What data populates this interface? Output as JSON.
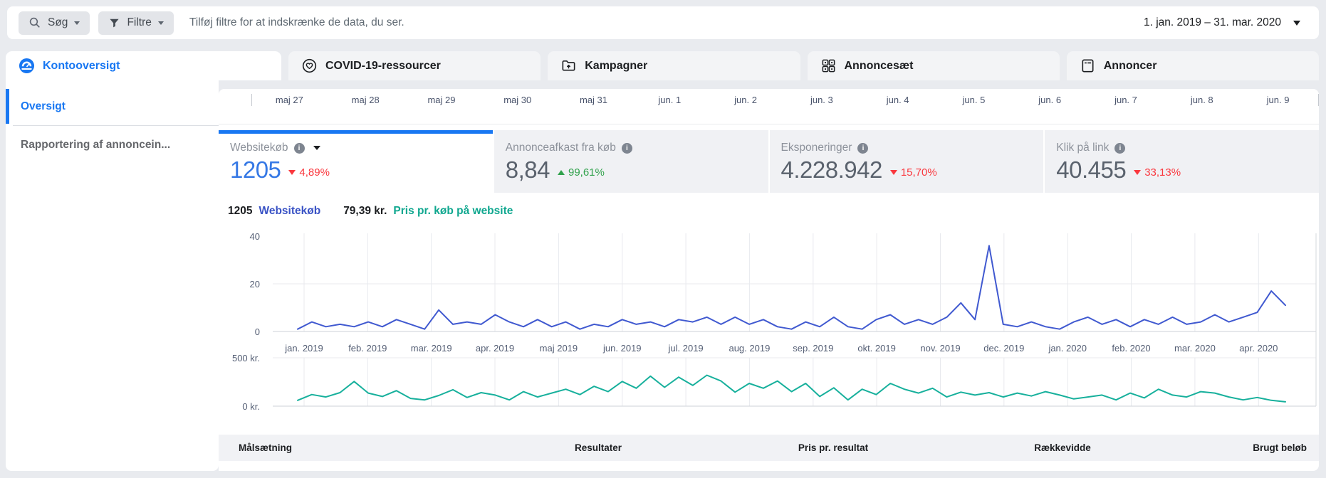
{
  "topbar": {
    "search_label": "Søg",
    "filter_label": "Filtre",
    "hint": "Tilføj filtre for at indskrænke de data, du ser.",
    "date_range": "1. jan. 2019 – 31. mar. 2020"
  },
  "tabs": [
    {
      "label": "Kontooversigt",
      "icon": "gauge-icon",
      "active": true
    },
    {
      "label": "COVID-19-ressourcer",
      "icon": "heart-circle-icon",
      "active": false
    },
    {
      "label": "Kampagner",
      "icon": "folder-arrow-icon",
      "active": false
    },
    {
      "label": "Annoncesæt",
      "icon": "grid-icon",
      "active": false
    },
    {
      "label": "Annoncer",
      "icon": "document-icon",
      "active": false
    }
  ],
  "sidebar": {
    "items": [
      {
        "label": "Oversigt",
        "active": true
      },
      {
        "label": "Rapportering af annoncein...",
        "active": false
      }
    ]
  },
  "timeline": {
    "dates": [
      "maj 27",
      "maj 28",
      "maj 29",
      "maj 30",
      "maj 31",
      "jun. 1",
      "jun. 2",
      "jun. 3",
      "jun. 4",
      "jun. 5",
      "jun. 6",
      "jun. 7",
      "jun. 8",
      "jun. 9"
    ]
  },
  "metrics": [
    {
      "label": "Websitekøb",
      "value": "1205",
      "delta": "4,89%",
      "direction": "down",
      "selected": true,
      "has_dropdown": true
    },
    {
      "label": "Annonceafkast fra køb",
      "value": "8,84",
      "delta": "99,61%",
      "direction": "up",
      "selected": false,
      "has_dropdown": false
    },
    {
      "label": "Eksponeringer",
      "value": "4.228.942",
      "delta": "15,70%",
      "direction": "down",
      "selected": false,
      "has_dropdown": false
    },
    {
      "label": "Klik på link",
      "value": "40.455",
      "delta": "33,13%",
      "direction": "down",
      "selected": false,
      "has_dropdown": false
    }
  ],
  "legend": {
    "purchases_value": "1205",
    "purchases_label": "Websitekøb",
    "cost_value": "79,39 kr.",
    "cost_label": "Pris pr. køb på website"
  },
  "chart_data": {
    "type": "line",
    "x_labels": [
      "jan. 2019",
      "feb. 2019",
      "mar. 2019",
      "apr. 2019",
      "maj 2019",
      "jun. 2019",
      "jul. 2019",
      "aug. 2019",
      "sep. 2019",
      "okt. 2019",
      "nov. 2019",
      "dec. 2019",
      "jan. 2020",
      "feb. 2020",
      "mar. 2020",
      "apr. 2020"
    ],
    "grid": true,
    "legend_position": "top",
    "top": {
      "name": "Websitekøb",
      "color": "#4059d0",
      "ylim": [
        0,
        40
      ],
      "yticks": [
        "40",
        "20",
        "0"
      ],
      "values": [
        1,
        4,
        2,
        3,
        2,
        4,
        2,
        5,
        3,
        1,
        9,
        3,
        4,
        3,
        7,
        4,
        2,
        5,
        2,
        4,
        1,
        3,
        2,
        5,
        3,
        4,
        2,
        5,
        4,
        6,
        3,
        6,
        3,
        5,
        2,
        1,
        4,
        2,
        6,
        2,
        1,
        5,
        7,
        3,
        5,
        3,
        6,
        12,
        5,
        36,
        3,
        2,
        4,
        2,
        1,
        4,
        6,
        3,
        5,
        2,
        5,
        3,
        6,
        3,
        4,
        7,
        4,
        6,
        8,
        17,
        11
      ]
    },
    "bottom": {
      "name": "Pris pr. køb på website",
      "color": "#17b09c",
      "ylim": [
        0,
        500
      ],
      "yticks": [
        "500 kr.",
        "0 kr."
      ],
      "values": [
        60,
        120,
        95,
        140,
        255,
        135,
        100,
        160,
        80,
        65,
        110,
        170,
        90,
        140,
        115,
        65,
        150,
        95,
        135,
        175,
        120,
        205,
        150,
        255,
        185,
        310,
        195,
        300,
        215,
        320,
        260,
        145,
        235,
        185,
        260,
        150,
        235,
        100,
        190,
        65,
        175,
        120,
        235,
        175,
        135,
        185,
        95,
        145,
        115,
        140,
        95,
        135,
        105,
        150,
        115,
        75,
        95,
        115,
        65,
        135,
        85,
        175,
        115,
        95,
        150,
        135,
        95,
        65,
        90,
        60,
        45
      ]
    }
  },
  "table": {
    "headers": [
      "Målsætning",
      "Resultater",
      "Pris pr. resultat",
      "Rækkevidde",
      "Brugt beløb"
    ]
  },
  "colors": {
    "accent_blue": "#1877f2",
    "value_blue": "#3578e5",
    "negative_red": "#fa383e",
    "positive_green": "#31a24c",
    "line_blue": "#4059d0",
    "line_teal": "#17b09c"
  }
}
